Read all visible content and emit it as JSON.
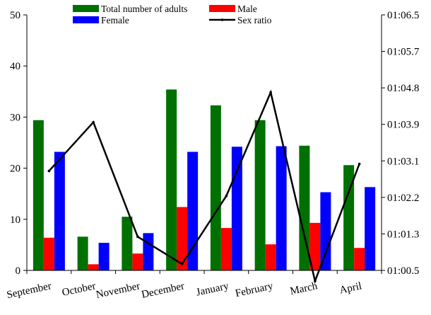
{
  "chart_data": {
    "type": "bar",
    "categories": [
      "September",
      "October",
      "November",
      "December",
      "January",
      "February",
      "March",
      "April"
    ],
    "series": [
      {
        "name": "Total number of adults",
        "kind": "bar",
        "axis": "left",
        "color": "#007000",
        "values": [
          29.4,
          6.6,
          10.5,
          35.4,
          32.3,
          29.4,
          24.4,
          20.6
        ]
      },
      {
        "name": "Male",
        "kind": "bar",
        "axis": "left",
        "color": "#ff0000",
        "values": [
          6.4,
          1.2,
          3.3,
          12.4,
          8.3,
          5.1,
          9.3,
          4.4
        ]
      },
      {
        "name": "Female",
        "kind": "bar",
        "axis": "left",
        "color": "#0000ff",
        "values": [
          23.2,
          5.4,
          7.3,
          23.2,
          24.2,
          24.3,
          15.3,
          16.3
        ]
      },
      {
        "name": "Sex ratio",
        "kind": "line",
        "axis": "right",
        "color": "#000000",
        "values": [
          0.2723,
          0.4059,
          0.0922,
          0.0175,
          0.2043,
          0.4878,
          -0.0291,
          0.2918
        ]
      }
    ],
    "ylim": [
      0,
      50
    ],
    "yticks": [
      0,
      10,
      20,
      30,
      40,
      50
    ],
    "y2lim": [
      0,
      0.7
    ],
    "y2ticks": [
      0,
      0.1,
      0.2,
      0.3,
      0.4,
      0.5,
      0.6,
      0.7
    ],
    "y2tick_labels": [
      "01:00.5",
      "01:01.3",
      "01:02.2",
      "01:03.1",
      "01:03.9",
      "01:04.8",
      "01:05.7",
      "01:06.5"
    ],
    "xlabel": "",
    "ylabel": "",
    "legend_position": "top",
    "grid": false
  }
}
